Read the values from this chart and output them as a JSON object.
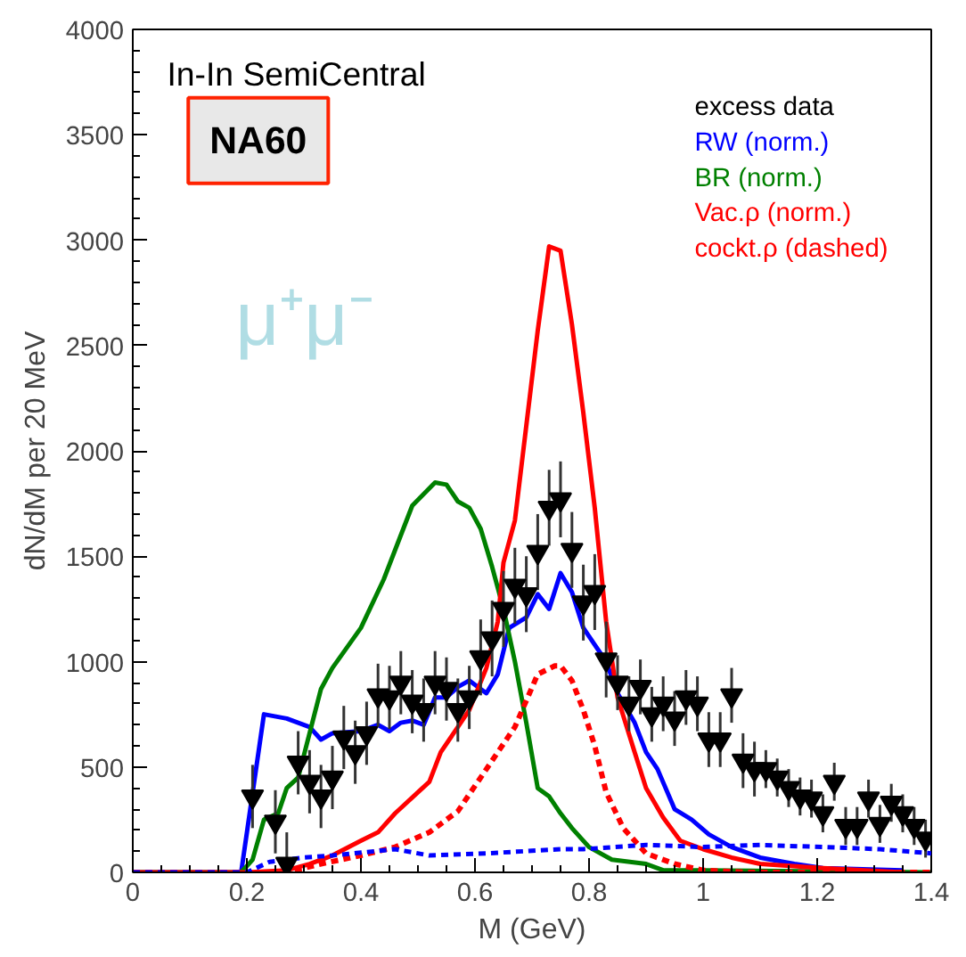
{
  "chart_data": {
    "type": "line",
    "xlabel": "M (GeV)",
    "ylabel": "dN/dM per 20 MeV",
    "xlim": [
      0,
      1.4
    ],
    "ylim": [
      0,
      4000
    ],
    "xticks": [
      0,
      0.2,
      0.4,
      0.6,
      0.8,
      1,
      1.2,
      1.4
    ],
    "yticks": [
      0,
      500,
      1000,
      1500,
      2000,
      2500,
      3000,
      3500,
      4000
    ],
    "grid": false,
    "legend": "top right",
    "annotations": [
      "In-In SemiCentral",
      "NA60",
      "μ⁺μ⁻"
    ],
    "series": [
      {
        "name": "excess data",
        "type": "scatter",
        "color": "#000000",
        "marker": "triangle",
        "x": [
          0.21,
          0.25,
          0.27,
          0.29,
          0.31,
          0.33,
          0.35,
          0.37,
          0.39,
          0.41,
          0.43,
          0.45,
          0.47,
          0.49,
          0.51,
          0.53,
          0.55,
          0.57,
          0.59,
          0.61,
          0.63,
          0.65,
          0.67,
          0.69,
          0.71,
          0.73,
          0.75,
          0.77,
          0.79,
          0.81,
          0.83,
          0.85,
          0.87,
          0.89,
          0.91,
          0.93,
          0.95,
          0.97,
          0.99,
          1.01,
          1.03,
          1.05,
          1.07,
          1.09,
          1.11,
          1.13,
          1.15,
          1.17,
          1.19,
          1.21,
          1.23,
          1.25,
          1.27,
          1.29,
          1.31,
          1.33,
          1.35,
          1.37,
          1.39
        ],
        "values": [
          360,
          240,
          40,
          520,
          430,
          360,
          450,
          640,
          570,
          660,
          840,
          830,
          900,
          810,
          770,
          900,
          870,
          770,
          830,
          1020,
          1110,
          1250,
          1360,
          1320,
          1520,
          1730,
          1770,
          1530,
          1280,
          1330,
          1010,
          900,
          800,
          880,
          750,
          800,
          730,
          830,
          800,
          630,
          630,
          840,
          530,
          490,
          490,
          450,
          400,
          360,
          350,
          280,
          430,
          220,
          220,
          350,
          230,
          330,
          280,
          220,
          160
        ],
        "errors": [
          150,
          150,
          150,
          150,
          150,
          150,
          150,
          150,
          150,
          150,
          150,
          150,
          150,
          150,
          150,
          150,
          150,
          150,
          150,
          180,
          180,
          180,
          180,
          180,
          180,
          180,
          180,
          180,
          180,
          180,
          180,
          130,
          130,
          130,
          130,
          130,
          130,
          130,
          130,
          130,
          130,
          130,
          130,
          130,
          90,
          90,
          90,
          90,
          90,
          90,
          90,
          90,
          90,
          90,
          90,
          90,
          90,
          90,
          90
        ]
      },
      {
        "name": "RW (norm.)",
        "color": "#0000ff",
        "x": [
          0,
          0.19,
          0.23,
          0.27,
          0.31,
          0.33,
          0.35,
          0.4,
          0.43,
          0.45,
          0.47,
          0.49,
          0.51,
          0.53,
          0.55,
          0.57,
          0.59,
          0.62,
          0.64,
          0.66,
          0.69,
          0.71,
          0.73,
          0.75,
          0.77,
          0.79,
          0.81,
          0.83,
          0.85,
          0.88,
          0.9,
          0.92,
          0.95,
          0.98,
          1.01,
          1.05,
          1.1,
          1.16,
          1.21,
          1.35
        ],
        "values": [
          0,
          0,
          750,
          730,
          690,
          630,
          660,
          670,
          700,
          670,
          710,
          720,
          700,
          830,
          830,
          880,
          910,
          850,
          940,
          1160,
          1210,
          1320,
          1250,
          1420,
          1330,
          1160,
          1080,
          1000,
          850,
          710,
          570,
          490,
          300,
          250,
          180,
          120,
          70,
          40,
          20,
          10
        ]
      },
      {
        "name": "BR (norm.)",
        "color": "#008000",
        "x": [
          0,
          0.19,
          0.21,
          0.23,
          0.255,
          0.27,
          0.29,
          0.31,
          0.33,
          0.35,
          0.4,
          0.44,
          0.49,
          0.53,
          0.55,
          0.57,
          0.59,
          0.61,
          0.63,
          0.65,
          0.67,
          0.69,
          0.71,
          0.73,
          0.75,
          0.77,
          0.8,
          0.84,
          0.9,
          0.93,
          1.0,
          1.4
        ],
        "values": [
          0,
          0,
          60,
          250,
          280,
          400,
          450,
          660,
          870,
          970,
          1160,
          1390,
          1740,
          1850,
          1840,
          1760,
          1730,
          1630,
          1450,
          1250,
          1000,
          710,
          400,
          360,
          280,
          210,
          120,
          60,
          40,
          10,
          10,
          0
        ]
      },
      {
        "name": "Vac.ρ (norm.)",
        "color": "#ff0000",
        "x": [
          0,
          0.2,
          0.27,
          0.31,
          0.35,
          0.4,
          0.43,
          0.46,
          0.5,
          0.52,
          0.54,
          0.57,
          0.59,
          0.62,
          0.64,
          0.65,
          0.67,
          0.69,
          0.71,
          0.73,
          0.75,
          0.77,
          0.79,
          0.81,
          0.83,
          0.85,
          0.88,
          0.9,
          0.93,
          0.96,
          1.0,
          1.05,
          1.1,
          1.21,
          1.35
        ],
        "values": [
          0,
          0,
          10,
          40,
          80,
          150,
          190,
          280,
          380,
          430,
          570,
          690,
          770,
          970,
          1190,
          1470,
          1670,
          2120,
          2570,
          2970,
          2950,
          2600,
          2180,
          1730,
          1190,
          830,
          570,
          400,
          260,
          150,
          110,
          70,
          40,
          20,
          0
        ]
      },
      {
        "name": "cockt.ρ (dashed)",
        "line_style": "dashed",
        "color": "#ff0000",
        "x": [
          0,
          0.27,
          0.33,
          0.4,
          0.46,
          0.52,
          0.57,
          0.62,
          0.67,
          0.71,
          0.74,
          0.75,
          0.77,
          0.79,
          0.81,
          0.83,
          0.86,
          0.9,
          0.95,
          1.0,
          1.08,
          1.4
        ],
        "values": [
          0,
          0,
          40,
          80,
          120,
          190,
          290,
          490,
          690,
          940,
          980,
          980,
          910,
          770,
          600,
          380,
          210,
          90,
          40,
          10,
          0,
          0
        ]
      },
      {
        "line_style": "dashed",
        "color": "#0000ff",
        "x": [
          0,
          0.2,
          0.24,
          0.3,
          0.35,
          0.46,
          0.52,
          0.62,
          0.75,
          0.79,
          0.9,
          1.0,
          1.1,
          1.21,
          1.31,
          1.4
        ],
        "values": [
          0,
          0,
          50,
          70,
          80,
          110,
          80,
          90,
          110,
          110,
          130,
          120,
          130,
          120,
          110,
          90
        ]
      }
    ]
  }
}
